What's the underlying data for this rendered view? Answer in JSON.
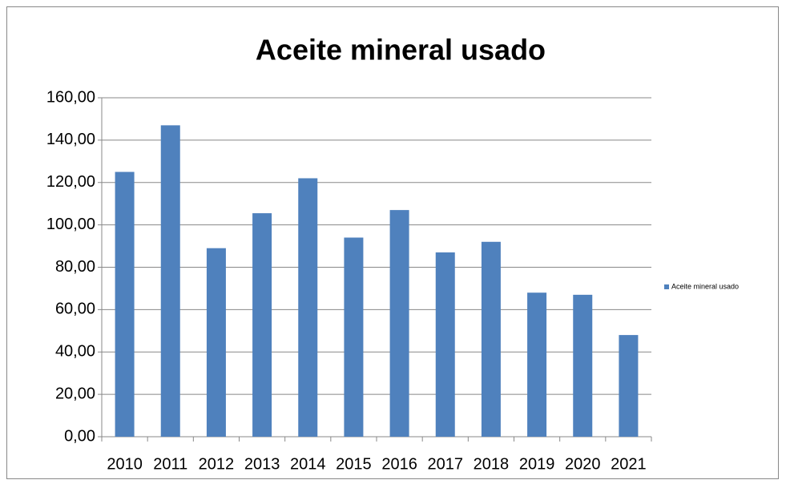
{
  "chart_data": {
    "type": "bar",
    "title": "Aceite mineral usado",
    "categories": [
      "2010",
      "2011",
      "2012",
      "2013",
      "2014",
      "2015",
      "2016",
      "2017",
      "2018",
      "2019",
      "2020",
      "2021"
    ],
    "series": [
      {
        "name": "Aceite mineral usado",
        "color": "#4f81bd",
        "values": [
          125,
          147,
          89,
          105.5,
          122,
          94,
          107,
          87,
          92,
          68,
          67,
          48
        ]
      }
    ],
    "ylim": [
      0,
      160
    ],
    "yticks": [
      {
        "value": 0,
        "label": "0,00"
      },
      {
        "value": 20,
        "label": "20,00"
      },
      {
        "value": 40,
        "label": "40,00"
      },
      {
        "value": 60,
        "label": "60,00"
      },
      {
        "value": 80,
        "label": "80,00"
      },
      {
        "value": 100,
        "label": "100,00"
      },
      {
        "value": 120,
        "label": "120,00"
      },
      {
        "value": 140,
        "label": "140,00"
      },
      {
        "value": 160,
        "label": "160,00"
      }
    ],
    "grid": true,
    "legend": "right"
  }
}
